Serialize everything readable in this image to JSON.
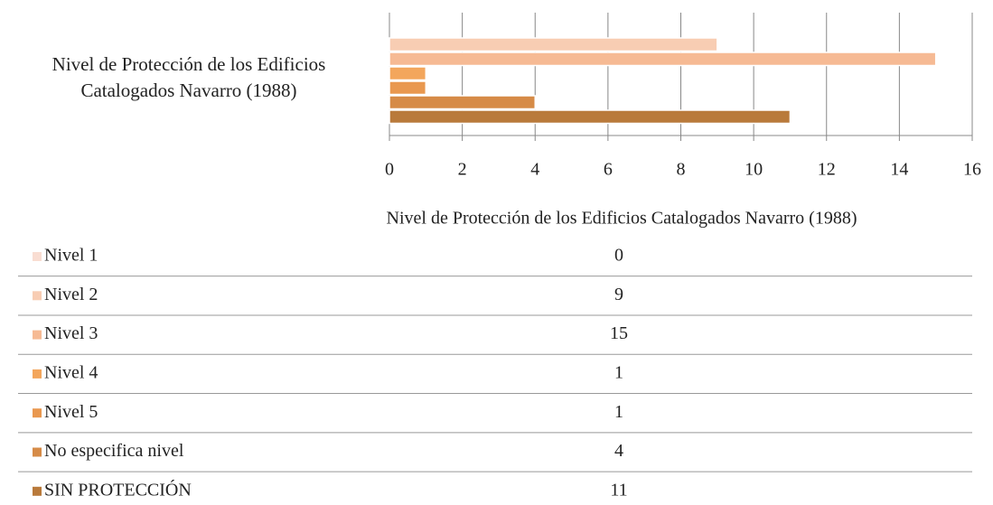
{
  "chart_data": {
    "type": "bar",
    "orientation": "horizontal",
    "categories": [
      "Nivel de Protección de los Edificios Catalogados Navarro (1988)"
    ],
    "series": [
      {
        "name": "Nivel 1",
        "color": "#f9ddd2",
        "values": [
          0
        ]
      },
      {
        "name": "Nivel 2",
        "color": "#f8cdb3",
        "values": [
          9
        ]
      },
      {
        "name": "Nivel 3",
        "color": "#f6ba94",
        "values": [
          15
        ]
      },
      {
        "name": "Nivel 4",
        "color": "#f3a65c",
        "values": [
          1
        ]
      },
      {
        "name": "Nivel 5",
        "color": "#e9984f",
        "values": [
          1
        ]
      },
      {
        "name": "No especifica nivel",
        "color": "#d68b47",
        "values": [
          4
        ]
      },
      {
        "name": "SIN PROTECCIÓN",
        "color": "#b97a3b",
        "values": [
          11
        ]
      }
    ],
    "xlim": [
      0,
      16
    ],
    "xticks": [
      0,
      2,
      4,
      6,
      8,
      10,
      12,
      14,
      16
    ],
    "grid": true
  }
}
